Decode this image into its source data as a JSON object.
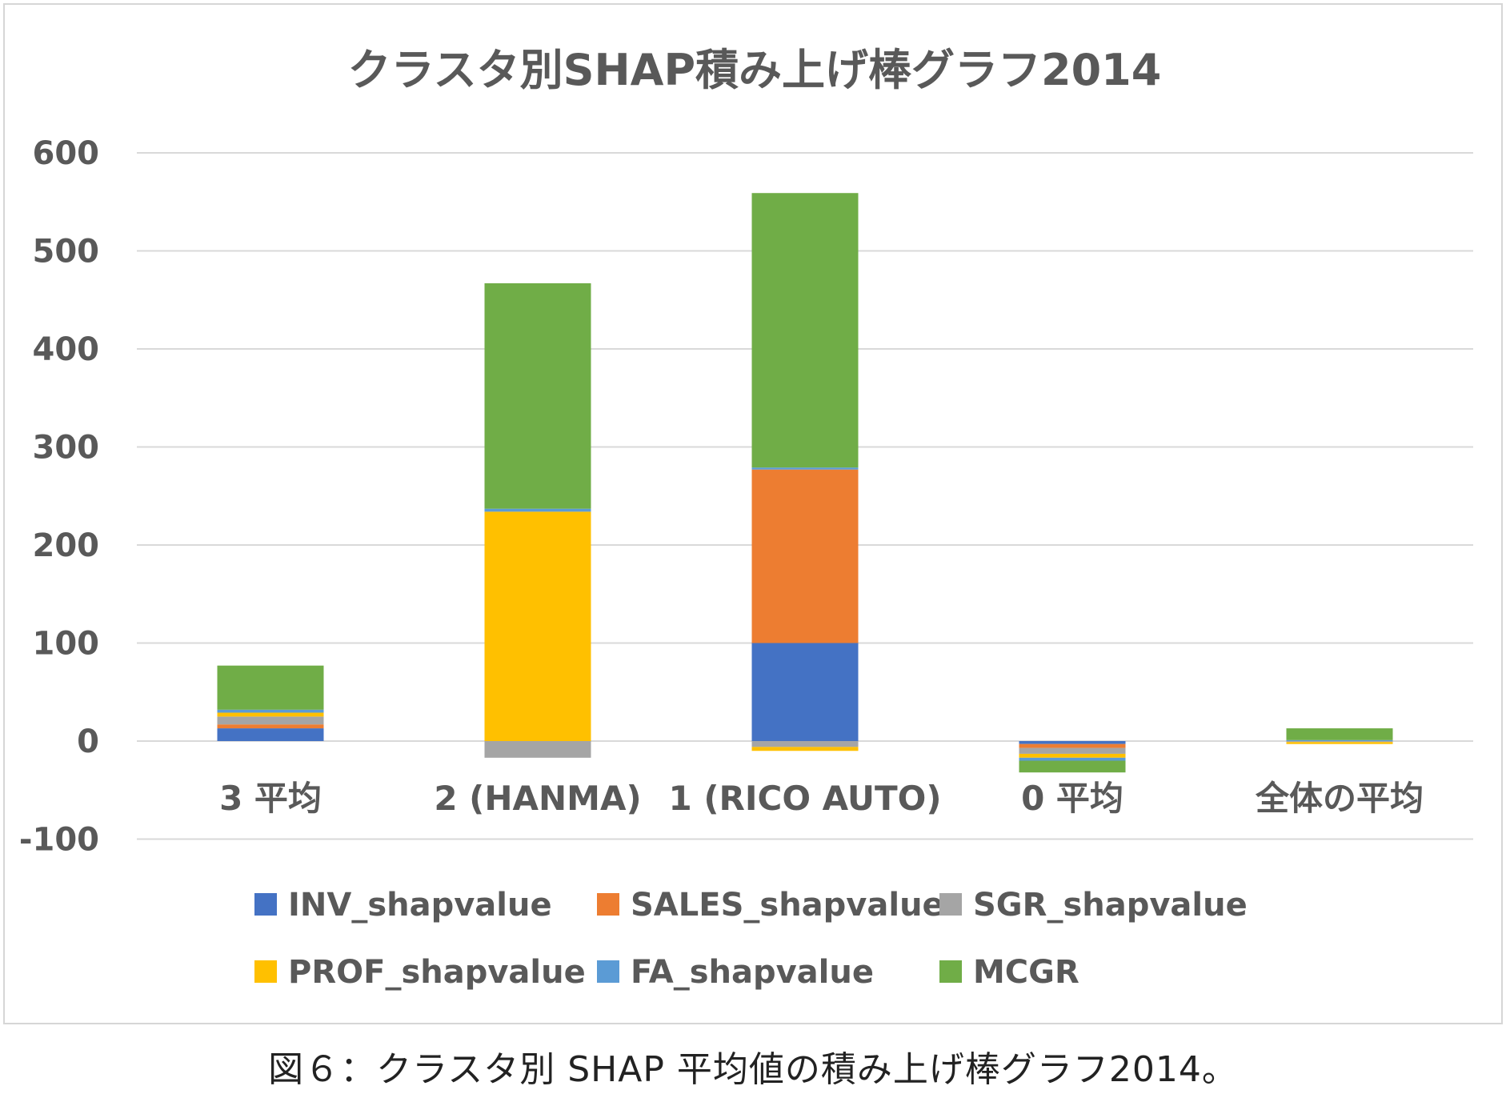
{
  "chart_data": {
    "type": "bar",
    "stacked": true,
    "title": "クラスタ別SHAP積み上げ棒グラフ2014",
    "categories": [
      "3 平均",
      "2 (HANMA)",
      "1 (RICO AUTO)",
      "0 平均",
      "全体の平均"
    ],
    "ylim": [
      -100,
      600
    ],
    "yticks": [
      -100,
      0,
      100,
      200,
      300,
      400,
      500,
      600
    ],
    "grid": true,
    "legend_position": "bottom",
    "series": [
      {
        "name": "INV_shapvalue",
        "color": "#4472C4",
        "values": [
          13,
          0,
          100,
          -3,
          0
        ]
      },
      {
        "name": "SALES_shapvalue",
        "color": "#ED7D31",
        "values": [
          4,
          0,
          177,
          -4,
          0
        ]
      },
      {
        "name": "SGR_shapvalue",
        "color": "#A5A5A5",
        "values": [
          8,
          -17,
          -6,
          -6,
          -1
        ]
      },
      {
        "name": "PROF_shapvalue",
        "color": "#FFC000",
        "values": [
          4,
          234,
          -4,
          -4,
          -2
        ]
      },
      {
        "name": "FA_shapvalue",
        "color": "#5B9BD5",
        "values": [
          3,
          3,
          2,
          -3,
          1
        ]
      },
      {
        "name": "MCGR",
        "color": "#70AD47",
        "values": [
          45,
          230,
          280,
          -12,
          12
        ]
      }
    ]
  },
  "caption": "図６：クラスタ別 SHAP 平均値の積み上げ棒グラフ2014。"
}
